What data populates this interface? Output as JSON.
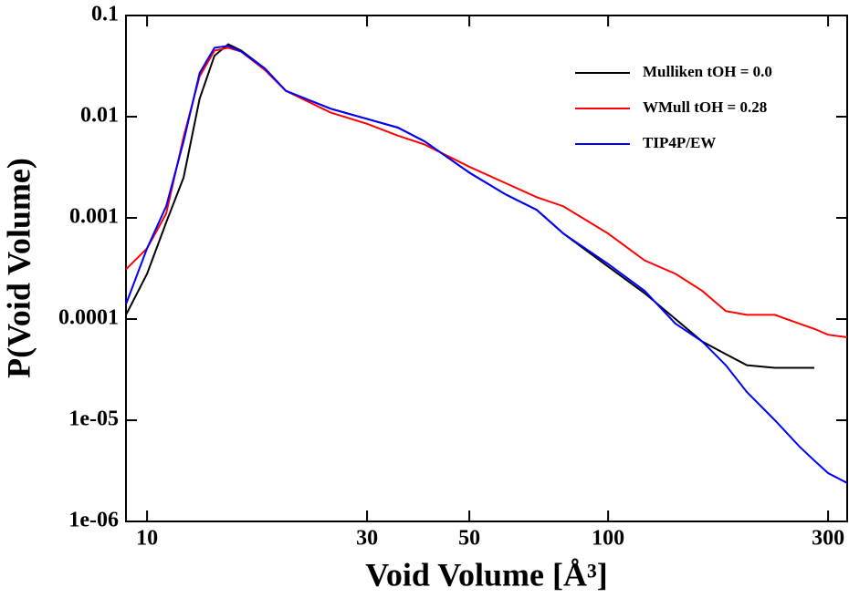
{
  "chart_data": {
    "type": "line",
    "xlabel": "Void Volume [Å³]",
    "ylabel": "P(Void Volume)",
    "xscale": "log",
    "yscale": "log",
    "grid": false,
    "legend": "upper right",
    "xlim": [
      9,
      330
    ],
    "ylim": [
      1e-06,
      0.1
    ],
    "xticks": [
      10,
      30,
      50,
      100,
      300
    ],
    "yticks": [
      0.1,
      0.01,
      0.001,
      0.0001,
      {
        "value": 1e-05,
        "label": "1e-05"
      },
      {
        "value": 1e-06,
        "label": "1e-06"
      }
    ],
    "x": [
      9,
      10,
      11,
      12,
      13,
      14,
      15,
      16,
      18,
      20,
      25,
      30,
      35,
      40,
      50,
      60,
      70,
      80,
      100,
      120,
      140,
      160,
      180,
      200,
      230,
      260,
      280,
      300,
      330
    ],
    "series": [
      {
        "name": "Mulliken tOH = 0.0",
        "color": "#000000",
        "values": [
          0.00011,
          0.00028,
          0.0009,
          0.0025,
          0.015,
          0.04,
          0.052,
          0.045,
          0.03,
          0.018,
          0.012,
          0.0095,
          0.0078,
          0.0057,
          0.0028,
          0.0017,
          0.0012,
          0.0007,
          0.00033,
          0.00018,
          0.0001,
          6e-05,
          4.5e-05,
          3.5e-05,
          3.3e-05,
          3.3e-05,
          3.3e-05,
          null,
          null
        ]
      },
      {
        "name": "WMull tOH = 0.28",
        "color": "#ff0000",
        "values": [
          0.00031,
          0.0005,
          0.0011,
          0.0063,
          0.025,
          0.045,
          0.048,
          0.044,
          0.029,
          0.018,
          0.011,
          0.0085,
          0.0065,
          0.0053,
          0.0032,
          0.0022,
          0.0016,
          0.0013,
          0.0007,
          0.00038,
          0.00028,
          0.00019,
          0.00012,
          0.00011,
          0.00011,
          9e-05,
          8e-05,
          7e-05,
          6.6e-05
        ]
      },
      {
        "name": "TIP4P/EW",
        "color": "#0000ff",
        "values": [
          0.00014,
          0.0005,
          0.0013,
          0.0057,
          0.027,
          0.048,
          0.05,
          0.044,
          0.03,
          0.018,
          0.012,
          0.0095,
          0.0078,
          0.0057,
          0.0028,
          0.0017,
          0.0012,
          0.0007,
          0.00035,
          0.00019,
          9e-05,
          6e-05,
          3.5e-05,
          1.9e-05,
          1e-05,
          5.5e-06,
          4e-06,
          3e-06,
          2.4e-06
        ]
      }
    ]
  }
}
